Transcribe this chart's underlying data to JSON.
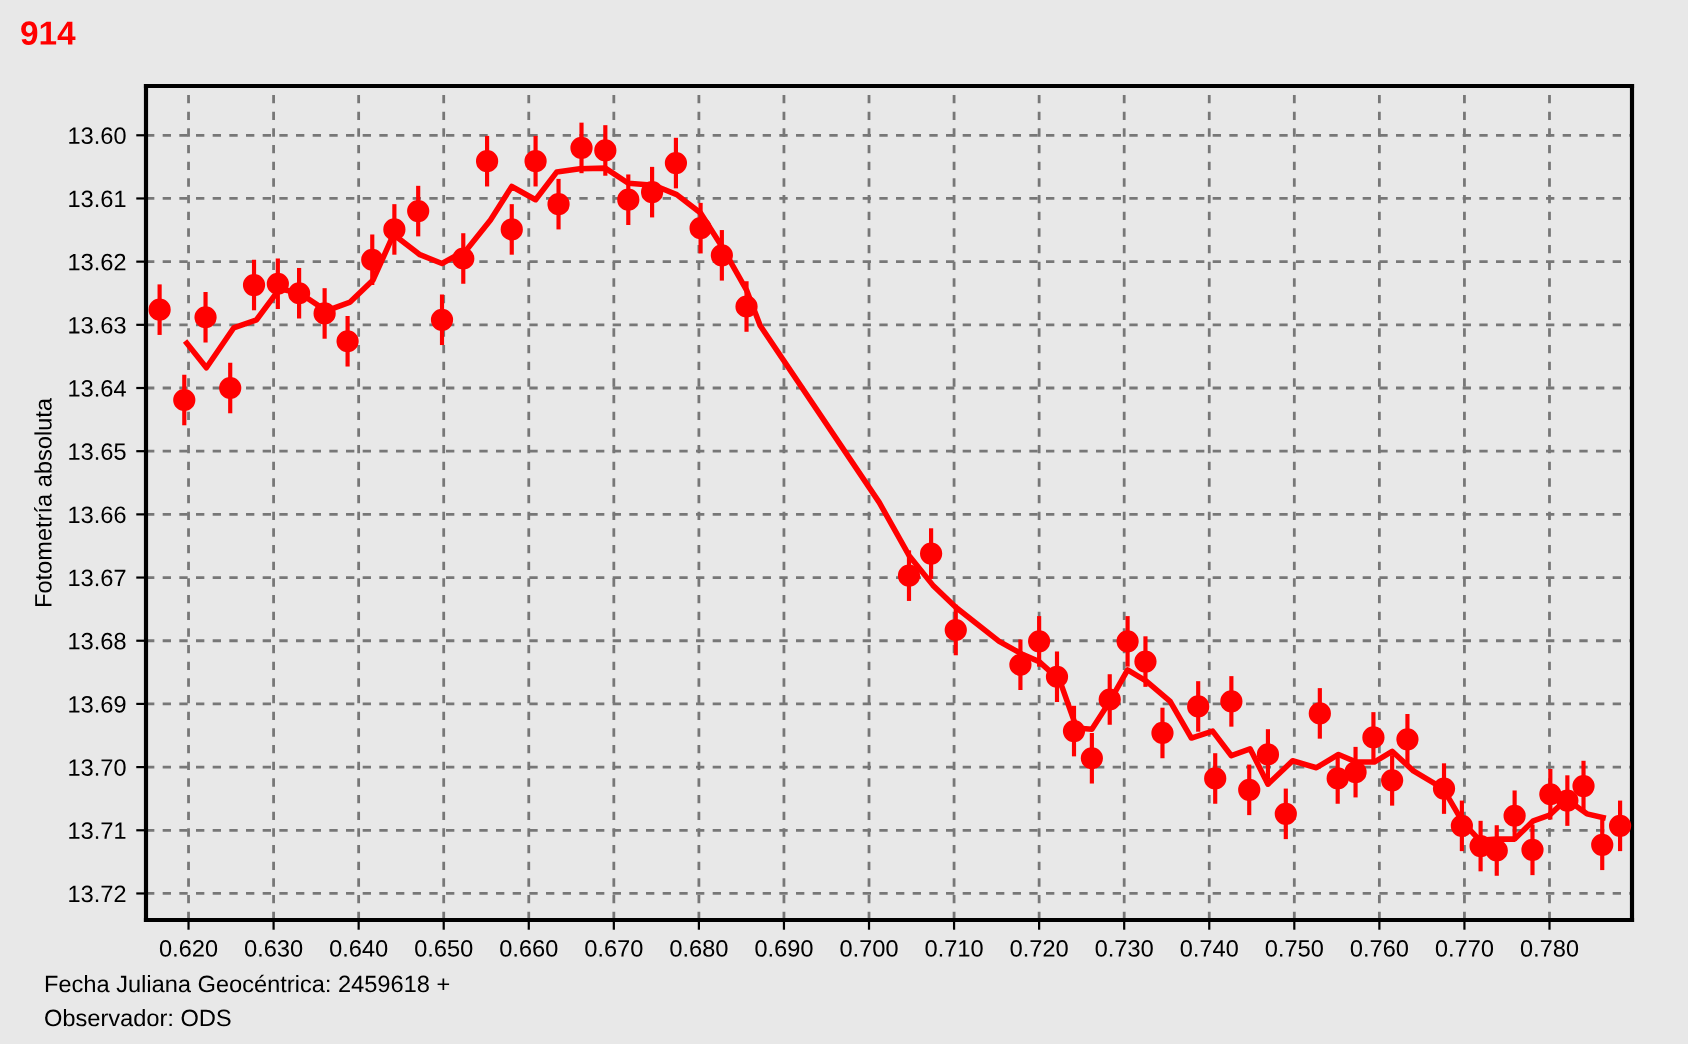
{
  "chart_data": {
    "type": "scatter",
    "title": "914",
    "xlabel": "Fecha Juliana Geocéntrica: 2459618 +",
    "ylabel": "Fotometría absoluta",
    "annotations": [
      "Observador: ODS"
    ],
    "xlim": [
      0.615,
      0.7897
    ],
    "ylim": [
      13.7242,
      13.5922
    ],
    "xticks": [
      {
        "value": 0.62,
        "label": "0.620"
      },
      {
        "value": 0.63,
        "label": "0.630"
      },
      {
        "value": 0.64,
        "label": "0.640"
      },
      {
        "value": 0.65,
        "label": "0.650"
      },
      {
        "value": 0.66,
        "label": "0.660"
      },
      {
        "value": 0.67,
        "label": "0.670"
      },
      {
        "value": 0.68,
        "label": "0.680"
      },
      {
        "value": 0.69,
        "label": "0.690"
      },
      {
        "value": 0.7,
        "label": "0.700"
      },
      {
        "value": 0.71,
        "label": "0.710"
      },
      {
        "value": 0.72,
        "label": "0.720"
      },
      {
        "value": 0.73,
        "label": "0.730"
      },
      {
        "value": 0.74,
        "label": "0.740"
      },
      {
        "value": 0.75,
        "label": "0.750"
      },
      {
        "value": 0.76,
        "label": "0.760"
      },
      {
        "value": 0.77,
        "label": "0.770"
      },
      {
        "value": 0.78,
        "label": "0.780"
      }
    ],
    "yticks": [
      {
        "value": 13.6,
        "label": "13.60"
      },
      {
        "value": 13.61,
        "label": "13.61"
      },
      {
        "value": 13.62,
        "label": "13.62"
      },
      {
        "value": 13.63,
        "label": "13.63"
      },
      {
        "value": 13.64,
        "label": "13.64"
      },
      {
        "value": 13.65,
        "label": "13.65"
      },
      {
        "value": 13.66,
        "label": "13.66"
      },
      {
        "value": 13.67,
        "label": "13.67"
      },
      {
        "value": 13.68,
        "label": "13.68"
      },
      {
        "value": 13.69,
        "label": "13.69"
      },
      {
        "value": 13.7,
        "label": "13.70"
      },
      {
        "value": 13.71,
        "label": "13.71"
      },
      {
        "value": 13.72,
        "label": "13.72"
      }
    ],
    "grid": true,
    "legend": false,
    "series": [
      {
        "color": "#ff0000",
        "marker": "circle",
        "x": [
          0.6166,
          0.6195,
          0.622,
          0.6249,
          0.6277,
          0.6305,
          0.633,
          0.636,
          0.6387,
          0.6416,
          0.6442,
          0.647,
          0.6498,
          0.6523,
          0.6551,
          0.658,
          0.6608,
          0.6635,
          0.6662,
          0.669,
          0.6717,
          0.6745,
          0.6773,
          0.6802,
          0.6827,
          0.6856,
          0.7047,
          0.7073,
          0.7102,
          0.7178,
          0.72,
          0.7221,
          0.7241,
          0.7262,
          0.7283,
          0.7304,
          0.7325,
          0.7345,
          0.7387,
          0.7407,
          0.7426,
          0.7447,
          0.7469,
          0.749,
          0.753,
          0.7551,
          0.7572,
          0.7593,
          0.7615,
          0.7633,
          0.7676,
          0.7697,
          0.7719,
          0.7738,
          0.7759,
          0.778,
          0.7801,
          0.7821,
          0.784,
          0.7862,
          0.7883
        ],
        "values": [
          13.6276,
          13.6419,
          13.6288,
          13.64,
          13.6237,
          13.6235,
          13.625,
          13.6282,
          13.6326,
          13.6197,
          13.6149,
          13.612,
          13.6292,
          13.6195,
          13.6041,
          13.6149,
          13.6041,
          13.6109,
          13.602,
          13.6024,
          13.6102,
          13.609,
          13.6044,
          13.6147,
          13.619,
          13.6271,
          13.6697,
          13.6662,
          13.6783,
          13.6838,
          13.6801,
          13.6857,
          13.6943,
          13.6986,
          13.6893,
          13.6801,
          13.6833,
          13.6946,
          13.6904,
          13.7018,
          13.6896,
          13.7036,
          13.698,
          13.7074,
          13.6915,
          13.7018,
          13.7008,
          13.6953,
          13.7021,
          13.6956,
          13.7034,
          13.7093,
          13.7125,
          13.7132,
          13.7077,
          13.7131,
          13.7043,
          13.7053,
          13.703,
          13.7123,
          13.7093
        ],
        "errors": [
          0.004,
          0.004,
          0.004,
          0.004,
          0.004,
          0.004,
          0.004,
          0.004,
          0.004,
          0.004,
          0.004,
          0.004,
          0.004,
          0.004,
          0.004,
          0.004,
          0.004,
          0.004,
          0.004,
          0.004,
          0.004,
          0.004,
          0.004,
          0.004,
          0.004,
          0.004,
          0.004,
          0.004,
          0.004,
          0.004,
          0.004,
          0.004,
          0.004,
          0.004,
          0.004,
          0.004,
          0.004,
          0.004,
          0.004,
          0.004,
          0.004,
          0.004,
          0.004,
          0.004,
          0.004,
          0.004,
          0.004,
          0.004,
          0.004,
          0.004,
          0.004,
          0.004,
          0.004,
          0.004,
          0.004,
          0.004,
          0.004,
          0.004,
          0.004,
          0.004,
          0.004
        ]
      },
      {
        "type": "line",
        "color": "#ff0000",
        "marker": "none",
        "line_style": "solid",
        "x": [
          0.6198,
          0.6221,
          0.6253,
          0.628,
          0.6307,
          0.6331,
          0.6362,
          0.639,
          0.6417,
          0.6441,
          0.6472,
          0.6498,
          0.6527,
          0.6555,
          0.658,
          0.6608,
          0.6633,
          0.666,
          0.669,
          0.6717,
          0.6747,
          0.6774,
          0.6802,
          0.6827,
          0.6856,
          0.6872,
          0.7012,
          0.7047,
          0.7075,
          0.7102,
          0.7153,
          0.7181,
          0.72,
          0.7224,
          0.7244,
          0.7262,
          0.7283,
          0.7304,
          0.7326,
          0.7354,
          0.7379,
          0.7404,
          0.7426,
          0.7448,
          0.7469,
          0.7498,
          0.7526,
          0.7552,
          0.7573,
          0.7594,
          0.7615,
          0.764,
          0.7675,
          0.7698,
          0.7718,
          0.7738,
          0.7759,
          0.7781,
          0.78,
          0.782,
          0.7844,
          0.7863
        ],
        "values": [
          13.6329,
          13.6368,
          13.6305,
          13.6292,
          13.6243,
          13.625,
          13.6278,
          13.6264,
          13.6229,
          13.6157,
          13.6189,
          13.6203,
          13.6181,
          13.6134,
          13.6081,
          13.6102,
          13.6058,
          13.6053,
          13.6052,
          13.6076,
          13.6079,
          13.6094,
          13.6123,
          13.6176,
          13.6245,
          13.6301,
          13.6581,
          13.6665,
          13.6712,
          13.6747,
          13.6801,
          13.6822,
          13.6833,
          13.6862,
          13.6938,
          13.694,
          13.6896,
          13.6846,
          13.6864,
          13.6896,
          13.6954,
          13.6943,
          13.6982,
          13.6971,
          13.7027,
          13.699,
          13.7001,
          13.698,
          13.6992,
          13.6992,
          13.6975,
          13.7006,
          13.7034,
          13.7087,
          13.7116,
          13.7114,
          13.7114,
          13.7085,
          13.7076,
          13.7051,
          13.7074,
          13.708
        ]
      }
    ]
  }
}
